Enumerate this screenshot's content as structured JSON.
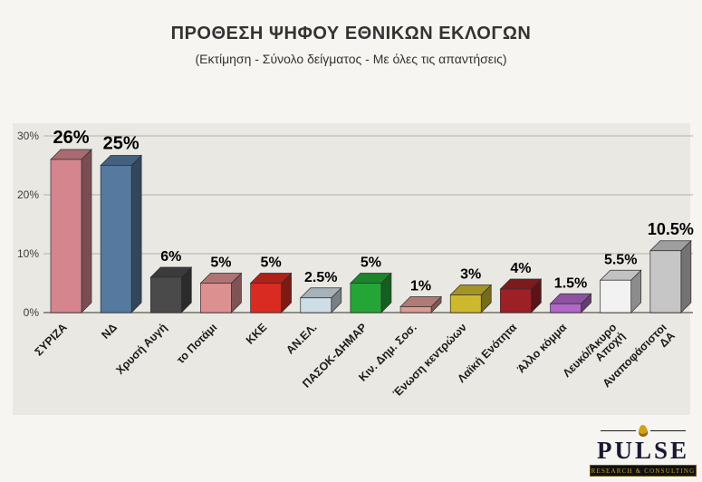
{
  "header": {
    "title": "ΠΡΟΘΕΣΗ ΨΗΦΟΥ ΕΘΝΙΚΩΝ ΕΚΛΟΓΩΝ",
    "subtitle": "(Εκτίμηση - Σύνολο δείγματος - Με όλες τις απαντήσεις)"
  },
  "chart_data": {
    "type": "bar",
    "style": "3d-column",
    "title": "ΠΡΟΘΕΣΗ ΨΗΦΟΥ ΕΘΝΙΚΩΝ ΕΚΛΟΓΩΝ",
    "subtitle": "(Εκτίμηση - Σύνολο δείγματος - Με όλες τις απαντήσεις)",
    "categories": [
      "ΣΥΡΙΖΑ",
      "ΝΔ",
      "Χρυσή Αυγή",
      "το Ποτάμι",
      "ΚΚΕ",
      "ΑΝ.ΕΛ.",
      "ΠΑΣΟΚ-ΔΗΜΑΡ",
      "Κιν. Δημ. Σοσ.",
      "Ένωση κεντρώων",
      "Λαϊκή Ενότητα",
      "Άλλο κόμμα",
      "Λευκό/Άκυρο\nΑποχή",
      "Αναποφάσιστοι\nΔΑ"
    ],
    "values": [
      26,
      25,
      6,
      5,
      5,
      2.5,
      5,
      1,
      3,
      4,
      1.5,
      5.5,
      10.5
    ],
    "value_labels": [
      "26%",
      "25%",
      "6%",
      "5%",
      "5%",
      "2.5%",
      "5%",
      "1%",
      "3%",
      "4%",
      "1.5%",
      "5.5%",
      "10.5%"
    ],
    "bar_colors": [
      "#d4858d",
      "#56799f",
      "#4a4a4a",
      "#dc9090",
      "#d92b21",
      "#cfdde6",
      "#24a637",
      "#dc9a94",
      "#cdb92e",
      "#9c2026",
      "#b168c8",
      "#f2f2f2",
      "#c6c6c6"
    ],
    "ylim": [
      0,
      30
    ],
    "yticks": [
      {
        "value": 0,
        "label": "0%"
      },
      {
        "value": 10,
        "label": "10%"
      },
      {
        "value": 20,
        "label": "20%"
      },
      {
        "value": 30,
        "label": "30%"
      }
    ],
    "grid": true,
    "legend": false,
    "panel_color": "#e9e8e3",
    "grid_color": "#b3b1ac",
    "axis_color": "#8f8d88"
  },
  "logo": {
    "name": "PULSE",
    "tagline": "RESEARCH & CONSULTING"
  }
}
